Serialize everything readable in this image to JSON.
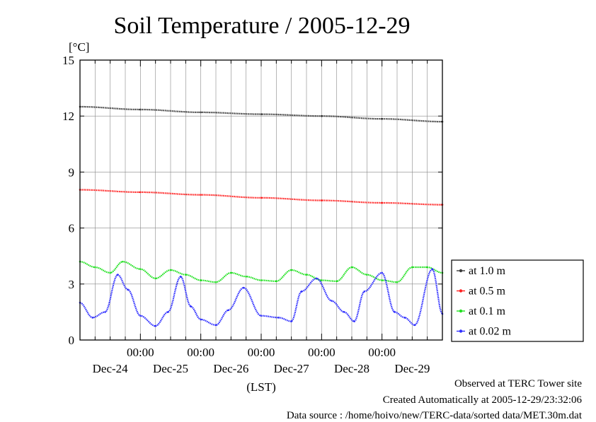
{
  "chart_data": {
    "type": "line",
    "title": "Soil Temperature / 2005-12-29",
    "ylabel": "[°C]",
    "xlabel": "(LST)",
    "ylim": [
      0,
      15
    ],
    "y_ticks": [
      "0",
      "3",
      "6",
      "9",
      "12",
      "15"
    ],
    "x_tick_time_label": "00:00",
    "x_date_labels": [
      "Dec-24",
      "Dec-25",
      "Dec-26",
      "Dec-27",
      "Dec-28",
      "Dec-29"
    ],
    "x_range": [
      "2005-12-23 00:00",
      "2005-12-29 00:00"
    ],
    "grid": true,
    "legend_position": "right",
    "series": [
      {
        "name": "at 1.0 m",
        "color": "#3a3a3a",
        "x": [
          "2005-12-23 00:00",
          "2005-12-24 00:00",
          "2005-12-25 00:00",
          "2005-12-26 00:00",
          "2005-12-27 00:00",
          "2005-12-28 00:00",
          "2005-12-29 00:00"
        ],
        "values": [
          12.5,
          12.35,
          12.2,
          12.1,
          12.0,
          11.85,
          11.7
        ]
      },
      {
        "name": "at 0.5 m",
        "color": "#ff2020",
        "x": [
          "2005-12-23 00:00",
          "2005-12-24 00:00",
          "2005-12-25 00:00",
          "2005-12-26 00:00",
          "2005-12-27 00:00",
          "2005-12-28 00:00",
          "2005-12-29 00:00"
        ],
        "values": [
          8.05,
          7.92,
          7.78,
          7.62,
          7.48,
          7.35,
          7.25
        ]
      },
      {
        "name": "at 0.1 m",
        "color": "#20e020",
        "x": [
          "2005-12-23 00:00",
          "2005-12-23 06:00",
          "2005-12-23 12:00",
          "2005-12-23 17:00",
          "2005-12-24 00:00",
          "2005-12-24 06:00",
          "2005-12-24 12:00",
          "2005-12-24 18:00",
          "2005-12-25 00:00",
          "2005-12-25 06:00",
          "2005-12-25 12:00",
          "2005-12-25 18:00",
          "2005-12-26 00:00",
          "2005-12-26 06:00",
          "2005-12-26 12:00",
          "2005-12-26 18:00",
          "2005-12-27 00:00",
          "2005-12-27 06:00",
          "2005-12-27 12:00",
          "2005-12-27 18:00",
          "2005-12-28 00:00",
          "2005-12-28 06:00",
          "2005-12-28 12:00",
          "2005-12-28 18:00",
          "2005-12-29 00:00"
        ],
        "values": [
          4.2,
          3.9,
          3.6,
          4.2,
          3.8,
          3.3,
          3.75,
          3.5,
          3.2,
          3.1,
          3.6,
          3.4,
          3.2,
          3.15,
          3.75,
          3.5,
          3.2,
          3.15,
          3.9,
          3.5,
          3.2,
          3.1,
          3.9,
          3.9,
          3.6
        ]
      },
      {
        "name": "at 0.02 m",
        "color": "#3030ff",
        "x": [
          "2005-12-23 00:00",
          "2005-12-23 05:00",
          "2005-12-23 10:00",
          "2005-12-23 15:00",
          "2005-12-23 19:00",
          "2005-12-24 00:00",
          "2005-12-24 06:00",
          "2005-12-24 11:00",
          "2005-12-24 16:00",
          "2005-12-24 20:00",
          "2005-12-25 00:00",
          "2005-12-25 06:00",
          "2005-12-25 11:00",
          "2005-12-25 17:00",
          "2005-12-26 00:00",
          "2005-12-26 07:00",
          "2005-12-26 12:00",
          "2005-12-26 16:00",
          "2005-12-26 22:00",
          "2005-12-27 04:00",
          "2005-12-27 09:00",
          "2005-12-27 13:00",
          "2005-12-27 17:00",
          "2005-12-28 00:00",
          "2005-12-28 05:00",
          "2005-12-28 09:00",
          "2005-12-28 13:00",
          "2005-12-28 20:00",
          "2005-12-29 00:00"
        ],
        "values": [
          2.0,
          1.2,
          1.5,
          3.5,
          2.7,
          1.3,
          0.75,
          1.5,
          3.4,
          1.8,
          1.1,
          0.8,
          1.6,
          2.8,
          1.3,
          1.2,
          1.0,
          2.6,
          3.3,
          2.1,
          1.5,
          1.0,
          2.6,
          3.6,
          1.5,
          1.2,
          0.8,
          3.8,
          1.4
        ]
      }
    ]
  },
  "footer": {
    "line1": "Observed at TERC Tower site",
    "line2": "Created Automatically at 2005-12-29/23:32:06",
    "line3": "Data source : /home/hoivo/new/TERC-data/sorted  data/MET.30m.dat"
  }
}
